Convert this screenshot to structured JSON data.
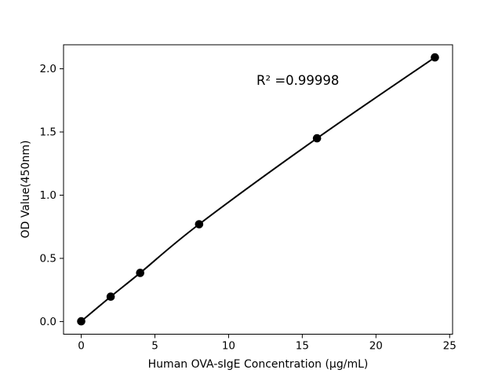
{
  "figure": {
    "background": "#ffffff",
    "foreground": "#000000"
  },
  "chart_data": {
    "type": "line",
    "title": "",
    "xlabel": "Human OVA-sIgE Concentration (µg/mL)",
    "ylabel": "OD Value(450nm)",
    "annotation": {
      "text": "R² =0.99998"
    },
    "x": [
      0,
      2,
      4,
      8,
      16,
      24
    ],
    "y": [
      0.002,
      0.197,
      0.385,
      0.77,
      1.45,
      2.09
    ],
    "xlim": [
      -1.2,
      25.2
    ],
    "ylim": [
      -0.1,
      2.19
    ],
    "xticks": {
      "values": [
        0,
        5,
        10,
        15,
        20,
        25
      ],
      "labels": [
        "0",
        "5",
        "10",
        "15",
        "20",
        "25"
      ]
    },
    "yticks": {
      "values": [
        0,
        0.5,
        1.0,
        1.5,
        2.0
      ],
      "labels": [
        "0.0",
        "0.5",
        "1.0",
        "1.5",
        "2.0"
      ]
    },
    "grid": false,
    "legend": false,
    "line_color": "#000000",
    "marker": "circle",
    "marker_color": "#000000"
  }
}
